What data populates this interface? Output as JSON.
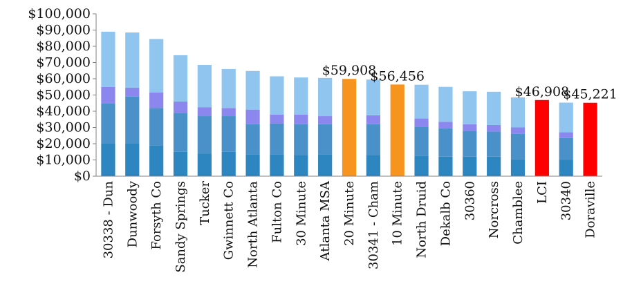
{
  "chart_data": {
    "type": "bar",
    "stacked": true,
    "categories": [
      "30338 - Dun",
      "Dunwoody",
      "Forsyth Co",
      "Sandy Springs",
      "Tucker",
      "Gwinnett Co",
      "North Atlanta",
      "Fulton Co",
      "30 Minute",
      "Atlanta MSA",
      "20 Minute",
      "30341 - Cham",
      "10 Minute",
      "North Druid",
      "Dekalb Co",
      "30360",
      "Norcross",
      "Chamblee",
      "LCI",
      "30340",
      "Doraville"
    ],
    "values": [
      89000,
      88500,
      84500,
      74500,
      68500,
      66000,
      64800,
      61500,
      60800,
      60500,
      59908,
      59500,
      56456,
      56300,
      55000,
      52300,
      52000,
      48500,
      46908,
      45300,
      45221
    ],
    "segments": [
      [
        20000,
        25000,
        10000,
        34000
      ],
      [
        20000,
        29000,
        5500,
        34000
      ],
      [
        19000,
        23000,
        9500,
        33000
      ],
      [
        15000,
        24000,
        7000,
        28500
      ],
      [
        14000,
        23000,
        5500,
        26000
      ],
      [
        15000,
        22000,
        5000,
        24000
      ],
      [
        13500,
        18500,
        9000,
        23800
      ],
      [
        13500,
        19000,
        5500,
        23500
      ],
      [
        13000,
        19000,
        6000,
        22800
      ],
      [
        13500,
        18500,
        5000,
        23500
      ],
      [
        59908,
        0,
        0,
        0
      ],
      [
        13000,
        19000,
        5500,
        22000
      ],
      [
        56456,
        0,
        0,
        0
      ],
      [
        12500,
        18000,
        5000,
        20800
      ],
      [
        12000,
        17500,
        4000,
        21500
      ],
      [
        12000,
        16000,
        4000,
        20300
      ],
      [
        12000,
        15500,
        4000,
        20500
      ],
      [
        10500,
        15500,
        4000,
        18500
      ],
      [
        46908,
        0,
        0,
        0
      ],
      [
        10000,
        13500,
        3500,
        18300
      ],
      [
        45221,
        0,
        0,
        0
      ]
    ],
    "highlight": [
      "",
      "",
      "",
      "",
      "",
      "",
      "",
      "",
      "",
      "",
      "orange",
      "",
      "orange",
      "",
      "",
      "",
      "",
      "",
      "red",
      "",
      "red"
    ],
    "data_labels": [
      {
        "index": 10,
        "text": "$59,908"
      },
      {
        "index": 12,
        "text": "$56,456"
      },
      {
        "index": 18,
        "text": "$46,908"
      },
      {
        "index": 20,
        "text": "$45,221"
      }
    ],
    "y_ticks": [
      "$0",
      "$10,000",
      "$20,000",
      "$30,000",
      "$40,000",
      "$50,000",
      "$60,000",
      "$70,000",
      "$80,000",
      "$90,000",
      "$100,000"
    ],
    "ylim": [
      0,
      100000
    ],
    "grid": false,
    "legend": "none",
    "colors": {
      "seg": [
        "#2e86c1",
        "#4a90c9",
        "#8b87ee",
        "#8fc5ee"
      ],
      "orange": "#f7941d",
      "red": "#ff0000",
      "axis": "#808080"
    }
  }
}
